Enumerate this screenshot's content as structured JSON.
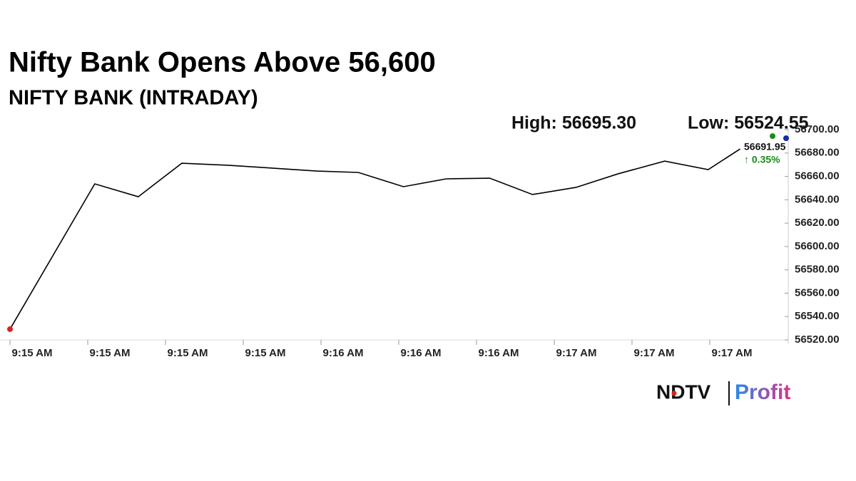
{
  "chart_data": {
    "type": "line",
    "title": "Nifty Bank Opens Above 56,600",
    "subtitle": "NIFTY BANK (INTRADAY)",
    "annotations": [
      "High: 56695.30",
      "Low: 56524.55",
      "56691.95",
      "↑ 0.35%"
    ],
    "x": [
      0,
      1.09,
      1.65,
      2.21,
      2.81,
      3.39,
      3.95,
      4.48,
      5.06,
      5.61,
      6.17,
      6.72,
      7.28,
      7.82,
      8.42,
      8.98,
      9.39
    ],
    "values": [
      56529.2,
      56653.6,
      56642.6,
      56671.3,
      56669.5,
      56667,
      56664.6,
      56663.4,
      56651.2,
      56657.9,
      56658.5,
      56644.5,
      56650.6,
      56662.2,
      56673.1,
      56665.8,
      56683.5
    ],
    "color": "#000000",
    "xlim": [
      0,
      10
    ],
    "xticks": [
      {
        "value": 0,
        "label": "9:15 AM"
      },
      {
        "value": 1,
        "label": "9:15 AM"
      },
      {
        "value": 2,
        "label": "9:15 AM"
      },
      {
        "value": 3,
        "label": "9:15 AM"
      },
      {
        "value": 4,
        "label": "9:16 AM"
      },
      {
        "value": 5,
        "label": "9:16 AM"
      },
      {
        "value": 6,
        "label": "9:16 AM"
      },
      {
        "value": 7,
        "label": "9:17 AM"
      },
      {
        "value": 8,
        "label": "9:17 AM"
      },
      {
        "value": 9,
        "label": "9:17 AM"
      }
    ],
    "ylim": [
      56520,
      56700
    ],
    "yticks": [
      {
        "value": 56520,
        "label": "56520.00"
      },
      {
        "value": 56540,
        "label": "56540.00"
      },
      {
        "value": 56560,
        "label": "56560.00"
      },
      {
        "value": 56580,
        "label": "56580.00"
      },
      {
        "value": 56600,
        "label": "56600.00"
      },
      {
        "value": 56620,
        "label": "56620.00"
      },
      {
        "value": 56640,
        "label": "56640.00"
      },
      {
        "value": 56660,
        "label": "56660.00"
      },
      {
        "value": 56680,
        "label": "56680.00"
      },
      {
        "value": 56700,
        "label": "56700.00"
      }
    ],
    "grid": false
  },
  "logo": {
    "brand": "NDTV",
    "product": "Profit"
  }
}
